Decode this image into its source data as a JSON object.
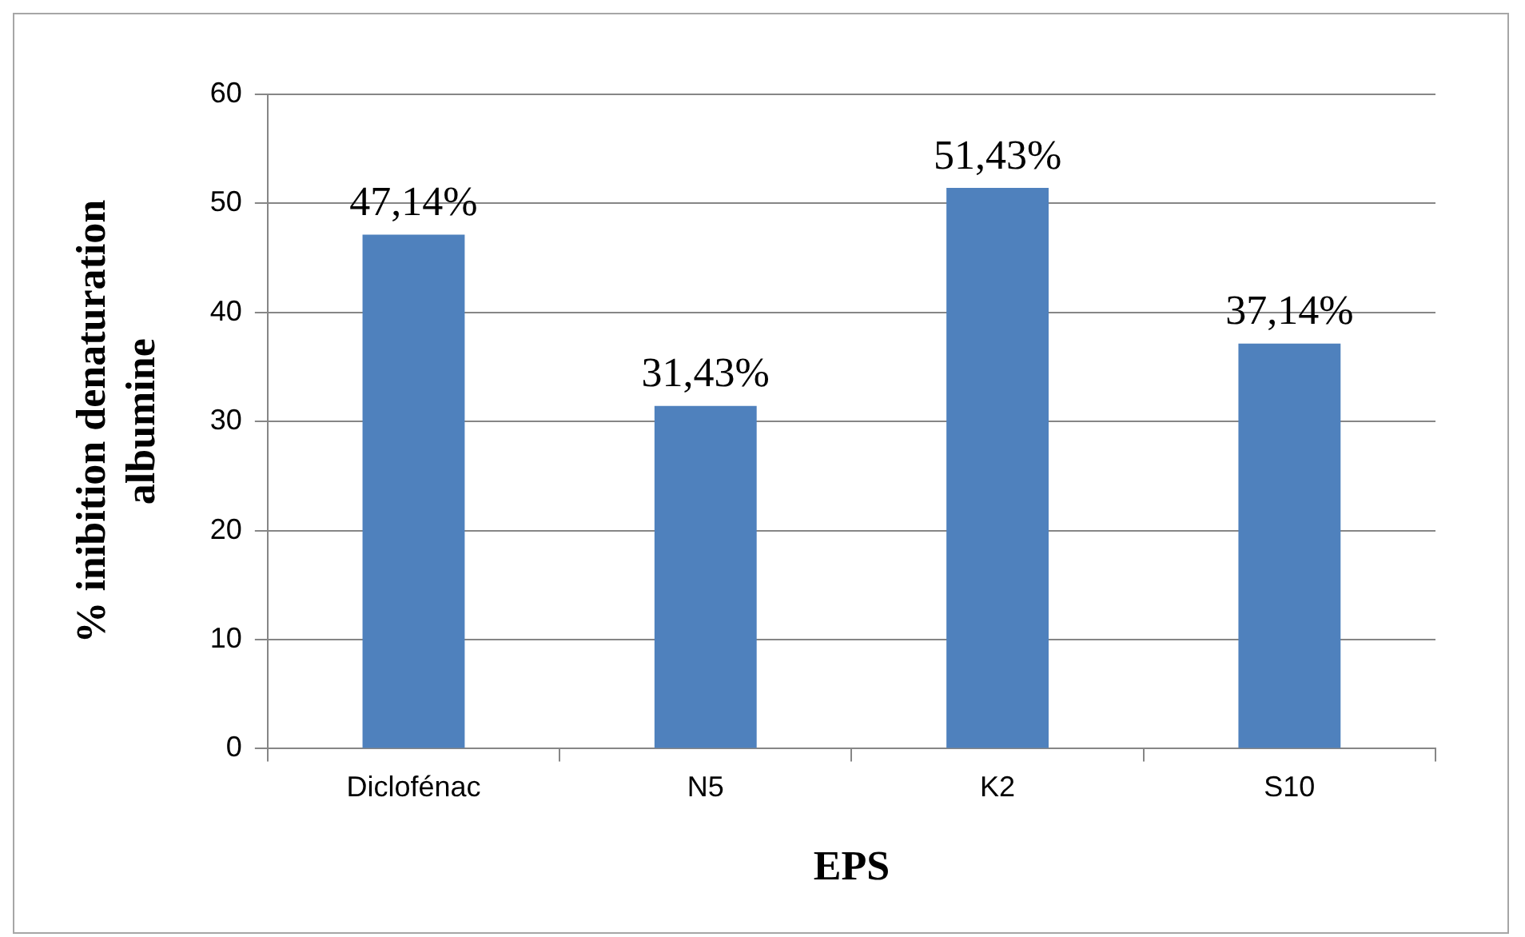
{
  "chart_data": {
    "type": "bar",
    "xlabel": "EPS",
    "ylabel": "% inibition denaturation albumine",
    "categories": [
      "Diclofénac",
      "N5",
      "K2",
      "S10"
    ],
    "values": [
      47.14,
      31.43,
      51.43,
      37.14
    ],
    "value_labels": [
      "47,14%",
      "31,43%",
      "51,43%",
      "37,14%"
    ],
    "color": "#4f81bd",
    "ylim": [
      0,
      60
    ],
    "yticks": [
      0,
      10,
      20,
      30,
      40,
      50,
      60
    ],
    "grid": "y",
    "legend": false
  }
}
